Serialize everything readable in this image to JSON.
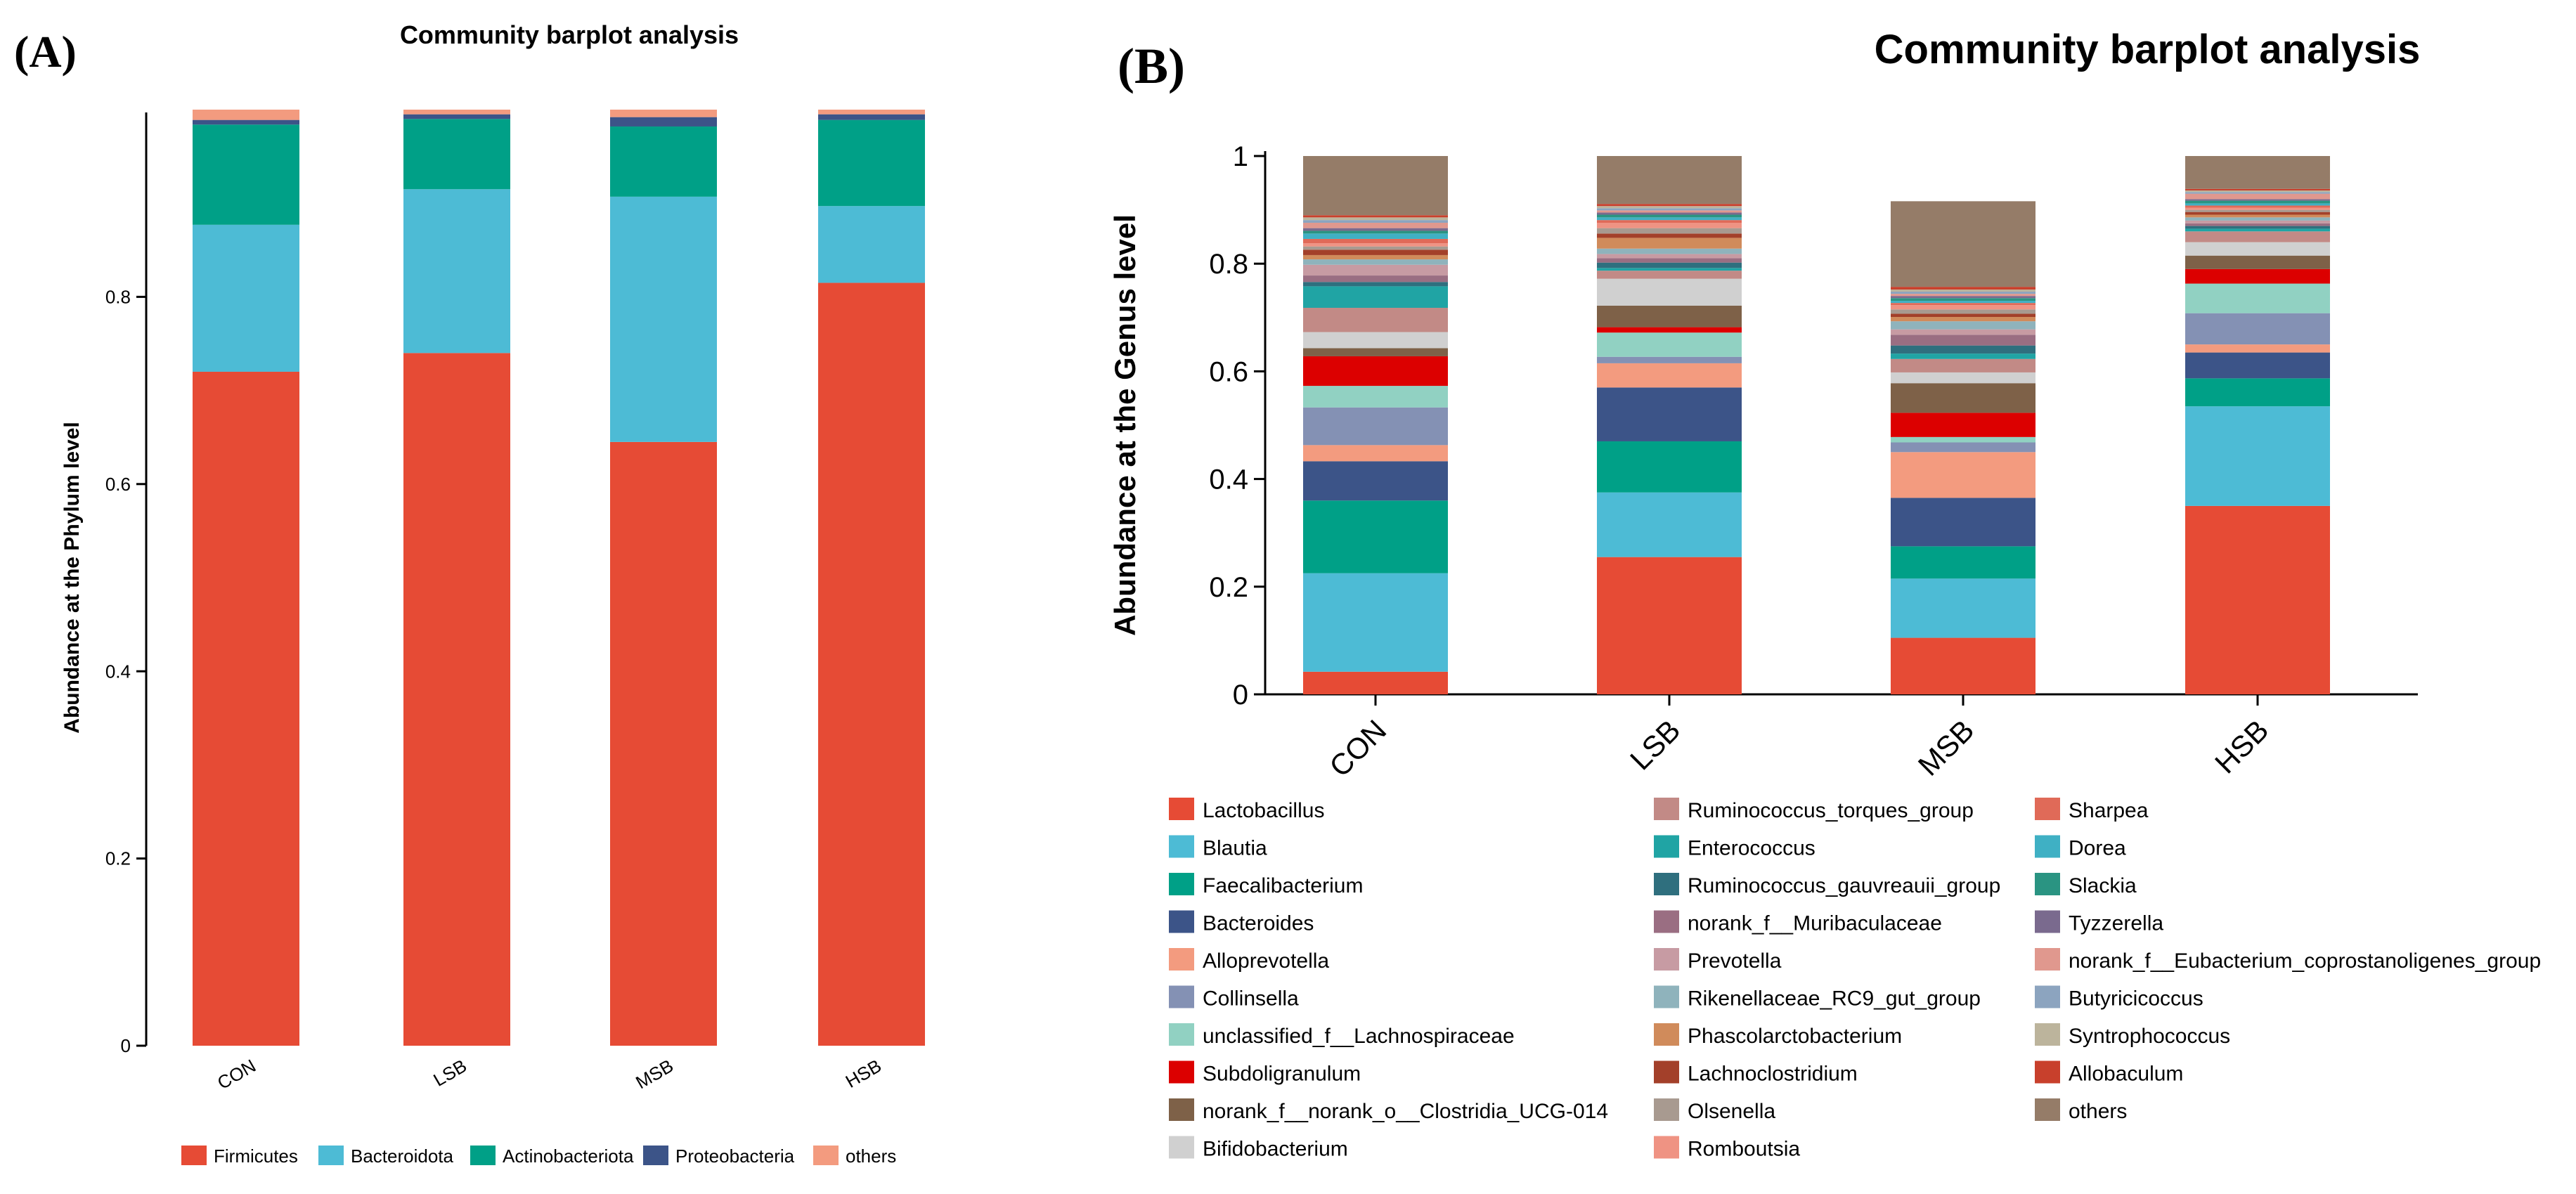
{
  "panel_a_label": "(A)",
  "panel_b_label": "(B)",
  "colors": {
    "Lactobacillus": "#E64B35",
    "Blautia": "#4DBBD5",
    "Faecalibacterium": "#00A087",
    "Bacteroides": "#3C5488",
    "Alloprevotella": "#F39B7F",
    "Collinsella": "#8491B4",
    "unclassified_f__Lachnospiraceae": "#91D1C2",
    "Subdoligranulum": "#DC0000",
    "norank_f__norank_o__Clostridia_UCG-014": "#7E6148",
    "Bifidobacterium": "#D0D0D0",
    "Ruminococcus_torques_group": "#C28A86",
    "Enterococcus": "#20A4A4",
    "Ruminococcus_gauvreauii_group": "#2F6F7E",
    "norank_f__Muribaculaceae": "#9A6E82",
    "Prevotella": "#C79BA3",
    "Rikenellaceae_RC9_gut_group": "#8FB3BC",
    "Phascolarctobacterium": "#D08B5B",
    "Lachnoclostridium": "#A3402A",
    "Olsenella": "#A89A90",
    "Romboutsia": "#EF9383",
    "Sharpea": "#E06A58",
    "Dorea": "#3FB0C4",
    "Slackia": "#2A9482",
    "Tyzzerella": "#7A6A8E",
    "norank_f__Eubacterium_coprostanoligenes_group": "#E0988E",
    "Butyricicoccus": "#8CA4BF",
    "Syntrophococcus": "#BCB49C",
    "Allobaculum": "#C8402C",
    "others": "#957C68",
    "Firmicutes": "#E64B35",
    "Bacteroidota": "#4DBBD5",
    "Actinobacteriota": "#00A087",
    "Proteobacteria": "#3C5488",
    "others_phylum": "#F39B7F"
  },
  "chart_data": [
    {
      "type": "bar",
      "stacked": true,
      "title": "Community barplot analysis",
      "xlabel": "",
      "ylabel": "Abundance at the Phylum level",
      "ylim": [
        0,
        1
      ],
      "yticks": [
        "0",
        "0.2",
        "0.4",
        "0.6",
        "0.8"
      ],
      "categories": [
        "CON",
        "LSB",
        "MSB",
        "HSB"
      ],
      "legend_position": "bottom",
      "series": [
        {
          "name": "Firmicutes",
          "color_key": "Firmicutes",
          "values": [
            0.72,
            0.74,
            0.645,
            0.815
          ]
        },
        {
          "name": "Bacteroidota",
          "color_key": "Bacteroidota",
          "values": [
            0.157,
            0.175,
            0.262,
            0.082
          ]
        },
        {
          "name": "Actinobacteriota",
          "color_key": "Actinobacteriota",
          "values": [
            0.107,
            0.075,
            0.075,
            0.092
          ]
        },
        {
          "name": "Proteobacteria",
          "color_key": "Proteobacteria",
          "values": [
            0.005,
            0.005,
            0.01,
            0.006
          ]
        },
        {
          "name": "others",
          "color_key": "others_phylum",
          "values": [
            0.011,
            0.005,
            0.008,
            0.005
          ]
        }
      ]
    },
    {
      "type": "bar",
      "stacked": true,
      "title": "Community barplot analysis",
      "xlabel": "",
      "ylabel": "Abundance at the Genus level",
      "ylim": [
        0,
        1
      ],
      "yticks": [
        "0",
        "0.2",
        "0.4",
        "0.6",
        "0.8",
        "1"
      ],
      "categories": [
        "CON",
        "LSB",
        "MSB",
        "HSB"
      ],
      "legend_position": "bottom",
      "series": [
        {
          "name": "Lactobacillus",
          "values": [
            0.042,
            0.255,
            0.105,
            0.35
          ]
        },
        {
          "name": "Blautia",
          "values": [
            0.183,
            0.12,
            0.11,
            0.185
          ]
        },
        {
          "name": "Faecalibacterium",
          "values": [
            0.135,
            0.095,
            0.06,
            0.052
          ]
        },
        {
          "name": "Bacteroides",
          "values": [
            0.073,
            0.1,
            0.09,
            0.048
          ]
        },
        {
          "name": "Alloprevotella",
          "values": [
            0.03,
            0.045,
            0.085,
            0.015
          ]
        },
        {
          "name": "Collinsella",
          "values": [
            0.07,
            0.012,
            0.018,
            0.058
          ]
        },
        {
          "name": "unclassified_f__Lachnospiraceae",
          "values": [
            0.04,
            0.045,
            0.01,
            0.055
          ]
        },
        {
          "name": "Subdoligranulum",
          "values": [
            0.055,
            0.01,
            0.045,
            0.027
          ]
        },
        {
          "name": "norank_f__norank_o__Clostridia_UCG-014",
          "values": [
            0.015,
            0.04,
            0.055,
            0.025
          ]
        },
        {
          "name": "Bifidobacterium",
          "values": [
            0.03,
            0.05,
            0.02,
            0.025
          ]
        },
        {
          "name": "Ruminococcus_torques_group",
          "values": [
            0.045,
            0.015,
            0.025,
            0.02
          ]
        },
        {
          "name": "Enterococcus",
          "values": [
            0.04,
            0.005,
            0.01,
            0.005
          ]
        },
        {
          "name": "Ruminococcus_gauvreauii_group",
          "values": [
            0.008,
            0.01,
            0.015,
            0.005
          ]
        },
        {
          "name": "norank_f__Muribaculaceae",
          "values": [
            0.012,
            0.008,
            0.02,
            0.005
          ]
        },
        {
          "name": "Prevotella",
          "values": [
            0.02,
            0.008,
            0.01,
            0.005
          ]
        },
        {
          "name": "Rikenellaceae_RC9_gut_group",
          "values": [
            0.01,
            0.01,
            0.015,
            0.006
          ]
        },
        {
          "name": "Phascolarctobacterium",
          "values": [
            0.008,
            0.02,
            0.008,
            0.005
          ]
        },
        {
          "name": "Lachnoclostridium",
          "values": [
            0.01,
            0.008,
            0.006,
            0.005
          ]
        },
        {
          "name": "Olsenella",
          "values": [
            0.006,
            0.01,
            0.008,
            0.004
          ]
        },
        {
          "name": "Romboutsia",
          "values": [
            0.006,
            0.01,
            0.008,
            0.004
          ]
        },
        {
          "name": "Sharpea",
          "values": [
            0.008,
            0.005,
            0.004,
            0.004
          ]
        },
        {
          "name": "Dorea",
          "values": [
            0.01,
            0.005,
            0.004,
            0.004
          ]
        },
        {
          "name": "Slackia",
          "values": [
            0.005,
            0.005,
            0.005,
            0.005
          ]
        },
        {
          "name": "Tyzzerella",
          "values": [
            0.005,
            0.004,
            0.004,
            0.003
          ]
        },
        {
          "name": "norank_f__Eubacterium_coprostanoligenes_group",
          "values": [
            0.01,
            0.004,
            0.004,
            0.01
          ]
        },
        {
          "name": "Butyricicoccus",
          "values": [
            0.005,
            0.004,
            0.004,
            0.003
          ]
        },
        {
          "name": "Syntrophococcus",
          "values": [
            0.005,
            0.004,
            0.004,
            0.003
          ]
        },
        {
          "name": "Allobaculum",
          "values": [
            0.004,
            0.004,
            0.005,
            0.003
          ]
        },
        {
          "name": "others",
          "values": [
            0.11,
            0.105,
            0.159,
            0.078
          ]
        }
      ]
    }
  ]
}
